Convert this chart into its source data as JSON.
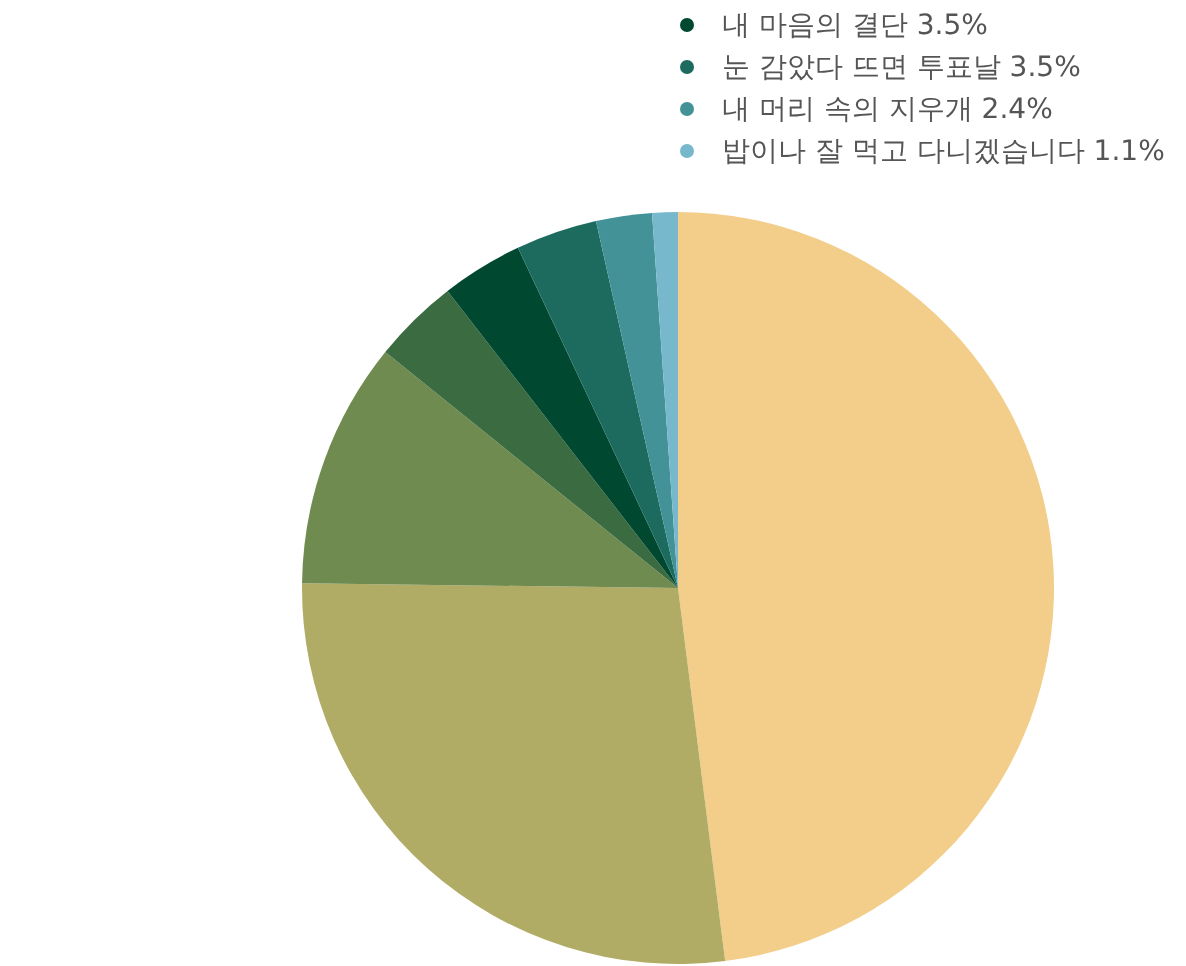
{
  "chart_data": {
    "type": "pie",
    "categories": [
      null,
      null,
      null,
      null,
      "내 마음의 결단",
      "눈 감았다 뜨면 투표날",
      "내 머리 속의 지우개",
      "밥이나 잘 먹고 다니겠습니다"
    ],
    "values": [
      48.0,
      27.2,
      10.6,
      3.7,
      3.5,
      3.5,
      2.4,
      1.1
    ],
    "value_labels": [
      null,
      null,
      null,
      null,
      "3.5%",
      "3.5%",
      "2.4%",
      "1.1%"
    ],
    "colors": [
      "#f2ce8a",
      "#b0ac66",
      "#6f8b50",
      "#3b6b40",
      "#004830",
      "#1d6b5f",
      "#429297",
      "#78b8cc"
    ],
    "legend": "top right"
  }
}
